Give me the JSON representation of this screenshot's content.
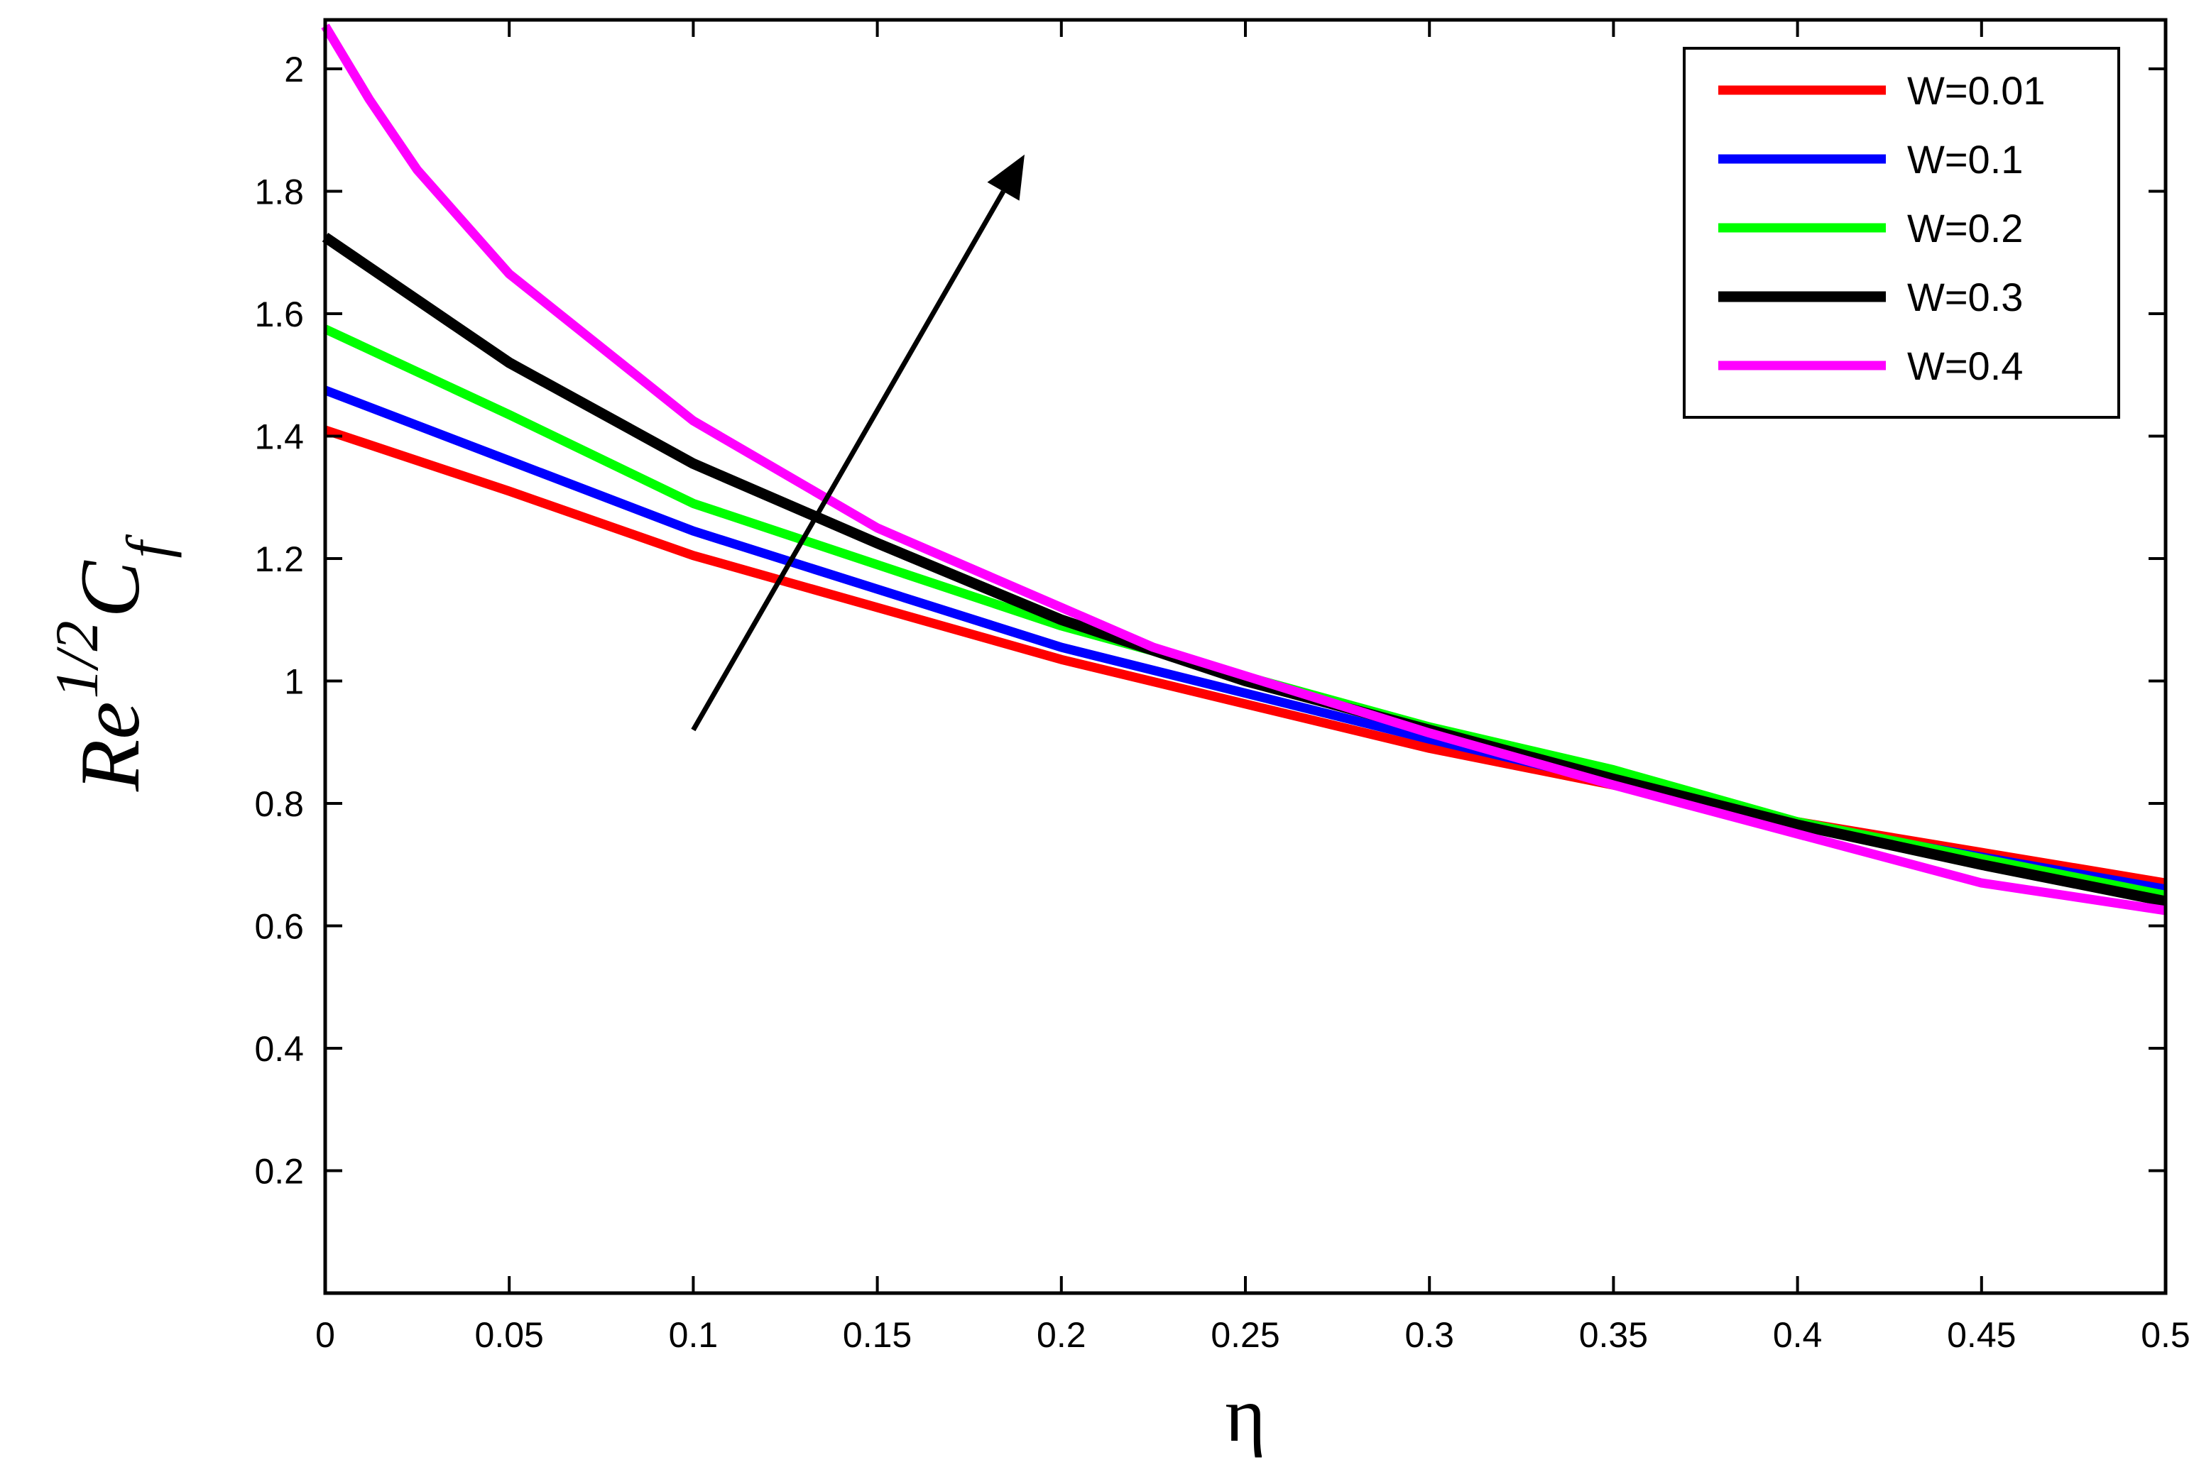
{
  "chart_data": {
    "type": "line",
    "xlabel": "η",
    "ylabel": {
      "base": "Re",
      "superscript": "1/2",
      "symbol": "C",
      "subscript": "f"
    },
    "xlim": [
      0,
      0.5
    ],
    "ylim": [
      0,
      2.08
    ],
    "xticks": [
      "0",
      "0.05",
      "0.1",
      "0.15",
      "0.2",
      "0.25",
      "0.3",
      "0.35",
      "0.4",
      "0.45",
      "0.5"
    ],
    "yticks": [
      "0.2",
      "0.4",
      "0.6",
      "0.8",
      "1",
      "1.2",
      "1.4",
      "1.6",
      "1.8",
      "2"
    ],
    "grid": false,
    "legend_position": "top-right",
    "annotation": {
      "type": "arrow",
      "meaning": "increasing W",
      "from": [
        0.1,
        0.92
      ],
      "to": [
        0.19,
        1.86
      ]
    },
    "series": [
      {
        "name": "W=0.01",
        "color": "#ff0000",
        "points": [
          [
            0,
            1.41
          ],
          [
            0.05,
            1.31
          ],
          [
            0.1,
            1.205
          ],
          [
            0.2,
            1.035
          ],
          [
            0.3,
            0.89
          ],
          [
            0.4,
            0.77
          ],
          [
            0.5,
            0.67
          ]
        ]
      },
      {
        "name": "W=0.1",
        "color": "#0000ff",
        "points": [
          [
            0,
            1.475
          ],
          [
            0.05,
            1.36
          ],
          [
            0.1,
            1.245
          ],
          [
            0.2,
            1.055
          ],
          [
            0.3,
            0.905
          ],
          [
            0.4,
            0.765
          ],
          [
            0.5,
            0.66
          ]
        ]
      },
      {
        "name": "W=0.2",
        "color": "#00ff00",
        "points": [
          [
            0,
            1.575
          ],
          [
            0.05,
            1.435
          ],
          [
            0.1,
            1.29
          ],
          [
            0.2,
            1.09
          ],
          [
            0.3,
            0.925
          ],
          [
            0.35,
            0.855
          ],
          [
            0.4,
            0.77
          ],
          [
            0.5,
            0.65
          ]
        ]
      },
      {
        "name": "W=0.3",
        "color": "#000000",
        "points": [
          [
            0,
            1.725
          ],
          [
            0.05,
            1.52
          ],
          [
            0.1,
            1.355
          ],
          [
            0.15,
            1.225
          ],
          [
            0.2,
            1.1
          ],
          [
            0.25,
            1.0
          ],
          [
            0.3,
            0.92
          ],
          [
            0.35,
            0.84
          ],
          [
            0.4,
            0.765
          ],
          [
            0.45,
            0.7
          ],
          [
            0.5,
            0.64
          ]
        ]
      },
      {
        "name": "W=0.4",
        "color": "#ff00ff",
        "points": [
          [
            0,
            2.07
          ],
          [
            0.012,
            1.95
          ],
          [
            0.025,
            1.835
          ],
          [
            0.05,
            1.665
          ],
          [
            0.1,
            1.425
          ],
          [
            0.15,
            1.25
          ],
          [
            0.2,
            1.12
          ],
          [
            0.225,
            1.055
          ],
          [
            0.3,
            0.915
          ],
          [
            0.35,
            0.83
          ],
          [
            0.4,
            0.75
          ],
          [
            0.45,
            0.67
          ],
          [
            0.5,
            0.625
          ]
        ]
      }
    ]
  }
}
